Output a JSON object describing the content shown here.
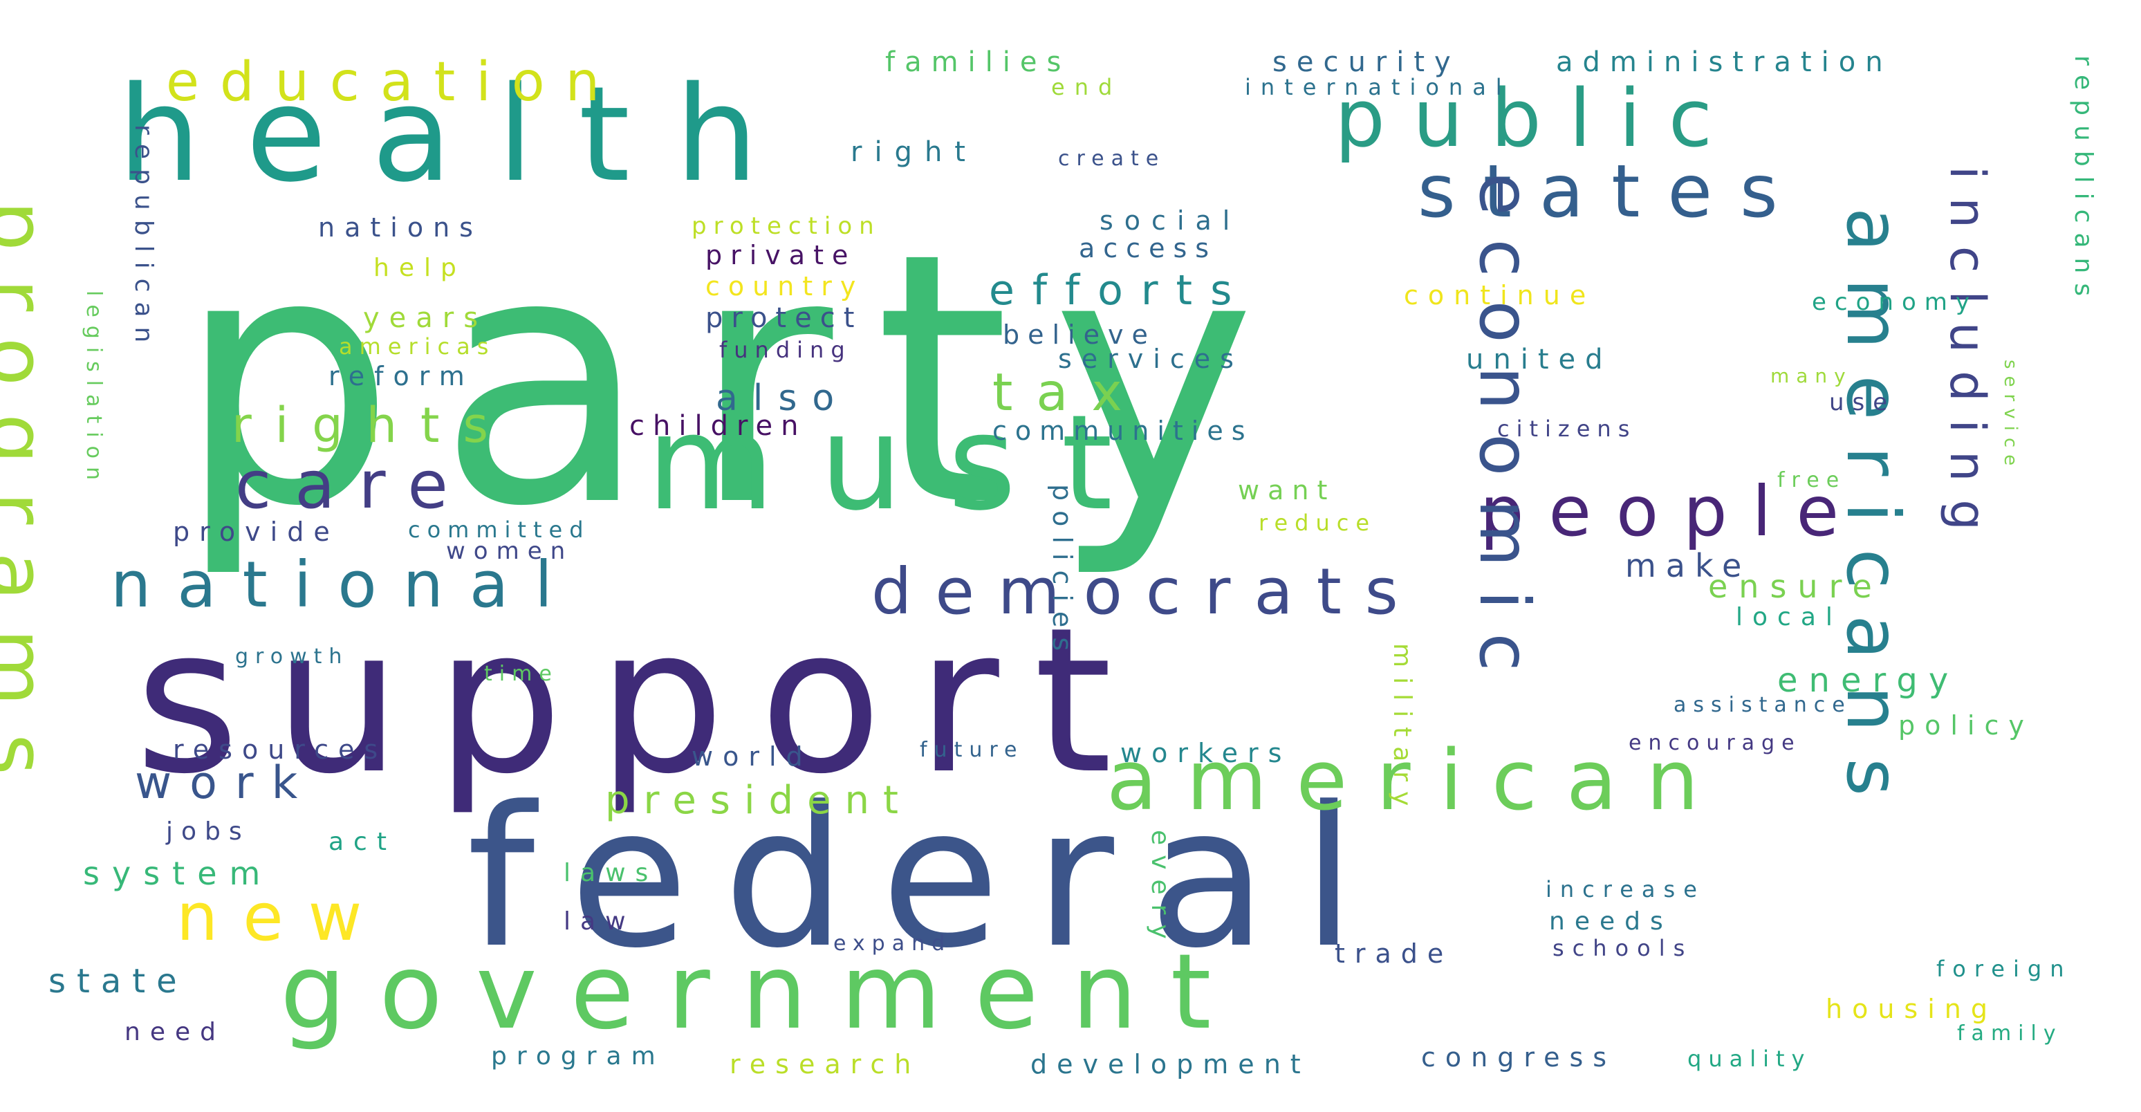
{
  "words": [
    {
      "text": "party",
      "color": "#3dbc74"
    },
    {
      "text": "support",
      "color": "#3f2b78"
    },
    {
      "text": "federal",
      "color": "#3c558a"
    },
    {
      "text": "health",
      "color": "#1f9a8a"
    },
    {
      "text": "must",
      "color": "#3dbc74"
    },
    {
      "text": "government",
      "color": "#5ec962"
    },
    {
      "text": "american",
      "color": "#6ccd5a"
    },
    {
      "text": "national",
      "color": "#2a788e"
    },
    {
      "text": "democrats",
      "color": "#3e4a89"
    },
    {
      "text": "public",
      "color": "#2a9c85"
    },
    {
      "text": "states",
      "color": "#345f8d"
    },
    {
      "text": "people",
      "color": "#482677"
    },
    {
      "text": "programs",
      "color": "#a0da39"
    },
    {
      "text": "americans",
      "color": "#27808e"
    },
    {
      "text": "economic",
      "color": "#3a548c"
    },
    {
      "text": "care",
      "color": "#433e85"
    },
    {
      "text": "new",
      "color": "#fde725"
    },
    {
      "text": "education",
      "color": "#d2e21b"
    },
    {
      "text": "rights",
      "color": "#84d44b"
    },
    {
      "text": "including",
      "color": "#404588"
    },
    {
      "text": "tax",
      "color": "#7ad151"
    },
    {
      "text": "efforts",
      "color": "#238a8d"
    },
    {
      "text": "work",
      "color": "#39558c"
    },
    {
      "text": "president",
      "color": "#8bd646"
    },
    {
      "text": "also",
      "color": "#31688e"
    },
    {
      "text": "security",
      "color": "#31688e"
    },
    {
      "text": "administration",
      "color": "#25848e"
    },
    {
      "text": "republicans",
      "color": "#35b779"
    },
    {
      "text": "families",
      "color": "#54c568"
    },
    {
      "text": "end",
      "color": "#9fda3a"
    },
    {
      "text": "international",
      "color": "#2c728e"
    },
    {
      "text": "right",
      "color": "#29798e"
    },
    {
      "text": "create",
      "color": "#3b528b"
    },
    {
      "text": "social",
      "color": "#2e6f8e"
    },
    {
      "text": "protection",
      "color": "#bddf26"
    },
    {
      "text": "nations",
      "color": "#3b528b"
    },
    {
      "text": "help",
      "color": "#c5e021"
    },
    {
      "text": "private",
      "color": "#471365"
    },
    {
      "text": "access",
      "color": "#32658e"
    },
    {
      "text": "country",
      "color": "#f3e51e"
    },
    {
      "text": "continue",
      "color": "#f0e51c"
    },
    {
      "text": "economy",
      "color": "#20a386"
    },
    {
      "text": "years",
      "color": "#a0da39"
    },
    {
      "text": "protect",
      "color": "#3b518b"
    },
    {
      "text": "americas",
      "color": "#b5de2b"
    },
    {
      "text": "funding",
      "color": "#46327e"
    },
    {
      "text": "believe",
      "color": "#33638d"
    },
    {
      "text": "reform",
      "color": "#2d708e"
    },
    {
      "text": "services",
      "color": "#2d708e"
    },
    {
      "text": "united",
      "color": "#287d8e"
    },
    {
      "text": "many",
      "color": "#9fda3a"
    },
    {
      "text": "use",
      "color": "#404688"
    },
    {
      "text": "republican",
      "color": "#3b528b"
    },
    {
      "text": "children",
      "color": "#471164"
    },
    {
      "text": "communities",
      "color": "#2c738e"
    },
    {
      "text": "citizens",
      "color": "#414487"
    },
    {
      "text": "legislation",
      "color": "#66cb5d"
    },
    {
      "text": "free",
      "color": "#6ccd5a"
    },
    {
      "text": "want",
      "color": "#75d054"
    },
    {
      "text": "provide",
      "color": "#3e4989"
    },
    {
      "text": "committed",
      "color": "#2a788e"
    },
    {
      "text": "reduce",
      "color": "#b8de29"
    },
    {
      "text": "women",
      "color": "#3f4889"
    },
    {
      "text": "make",
      "color": "#3b528b"
    },
    {
      "text": "ensure",
      "color": "#7ad151"
    },
    {
      "text": "local",
      "color": "#22a785"
    },
    {
      "text": "policies",
      "color": "#2e6e8e"
    },
    {
      "text": "service",
      "color": "#7fd34e"
    },
    {
      "text": "growth",
      "color": "#2c738e"
    },
    {
      "text": "time",
      "color": "#5ec962"
    },
    {
      "text": "energy",
      "color": "#3fbc73"
    },
    {
      "text": "military",
      "color": "#a5db36"
    },
    {
      "text": "assistance",
      "color": "#31688e"
    },
    {
      "text": "policy",
      "color": "#55c667"
    },
    {
      "text": "resources",
      "color": "#3e4989"
    },
    {
      "text": "world",
      "color": "#39568c"
    },
    {
      "text": "future",
      "color": "#33638d"
    },
    {
      "text": "workers",
      "color": "#24878e"
    },
    {
      "text": "encourage",
      "color": "#443983"
    },
    {
      "text": "jobs",
      "color": "#3e4989"
    },
    {
      "text": "act",
      "color": "#20a386"
    },
    {
      "text": "system",
      "color": "#37b878"
    },
    {
      "text": "laws",
      "color": "#4ac16d"
    },
    {
      "text": "every",
      "color": "#4ac16d"
    },
    {
      "text": "increase",
      "color": "#2c728e"
    },
    {
      "text": "needs",
      "color": "#2a788e"
    },
    {
      "text": "law",
      "color": "#443983"
    },
    {
      "text": "expand",
      "color": "#3d4e8a"
    },
    {
      "text": "trade",
      "color": "#3b518b"
    },
    {
      "text": "schools",
      "color": "#414487"
    },
    {
      "text": "foreign",
      "color": "#21918c"
    },
    {
      "text": "state",
      "color": "#2a788e"
    },
    {
      "text": "housing",
      "color": "#e5e419"
    },
    {
      "text": "family",
      "color": "#25ab82"
    },
    {
      "text": "need",
      "color": "#453781"
    },
    {
      "text": "program",
      "color": "#2a788e"
    },
    {
      "text": "research",
      "color": "#bade28"
    },
    {
      "text": "development",
      "color": "#2b758e"
    },
    {
      "text": "congress",
      "color": "#355f8d"
    },
    {
      "text": "quality",
      "color": "#22a884"
    }
  ]
}
